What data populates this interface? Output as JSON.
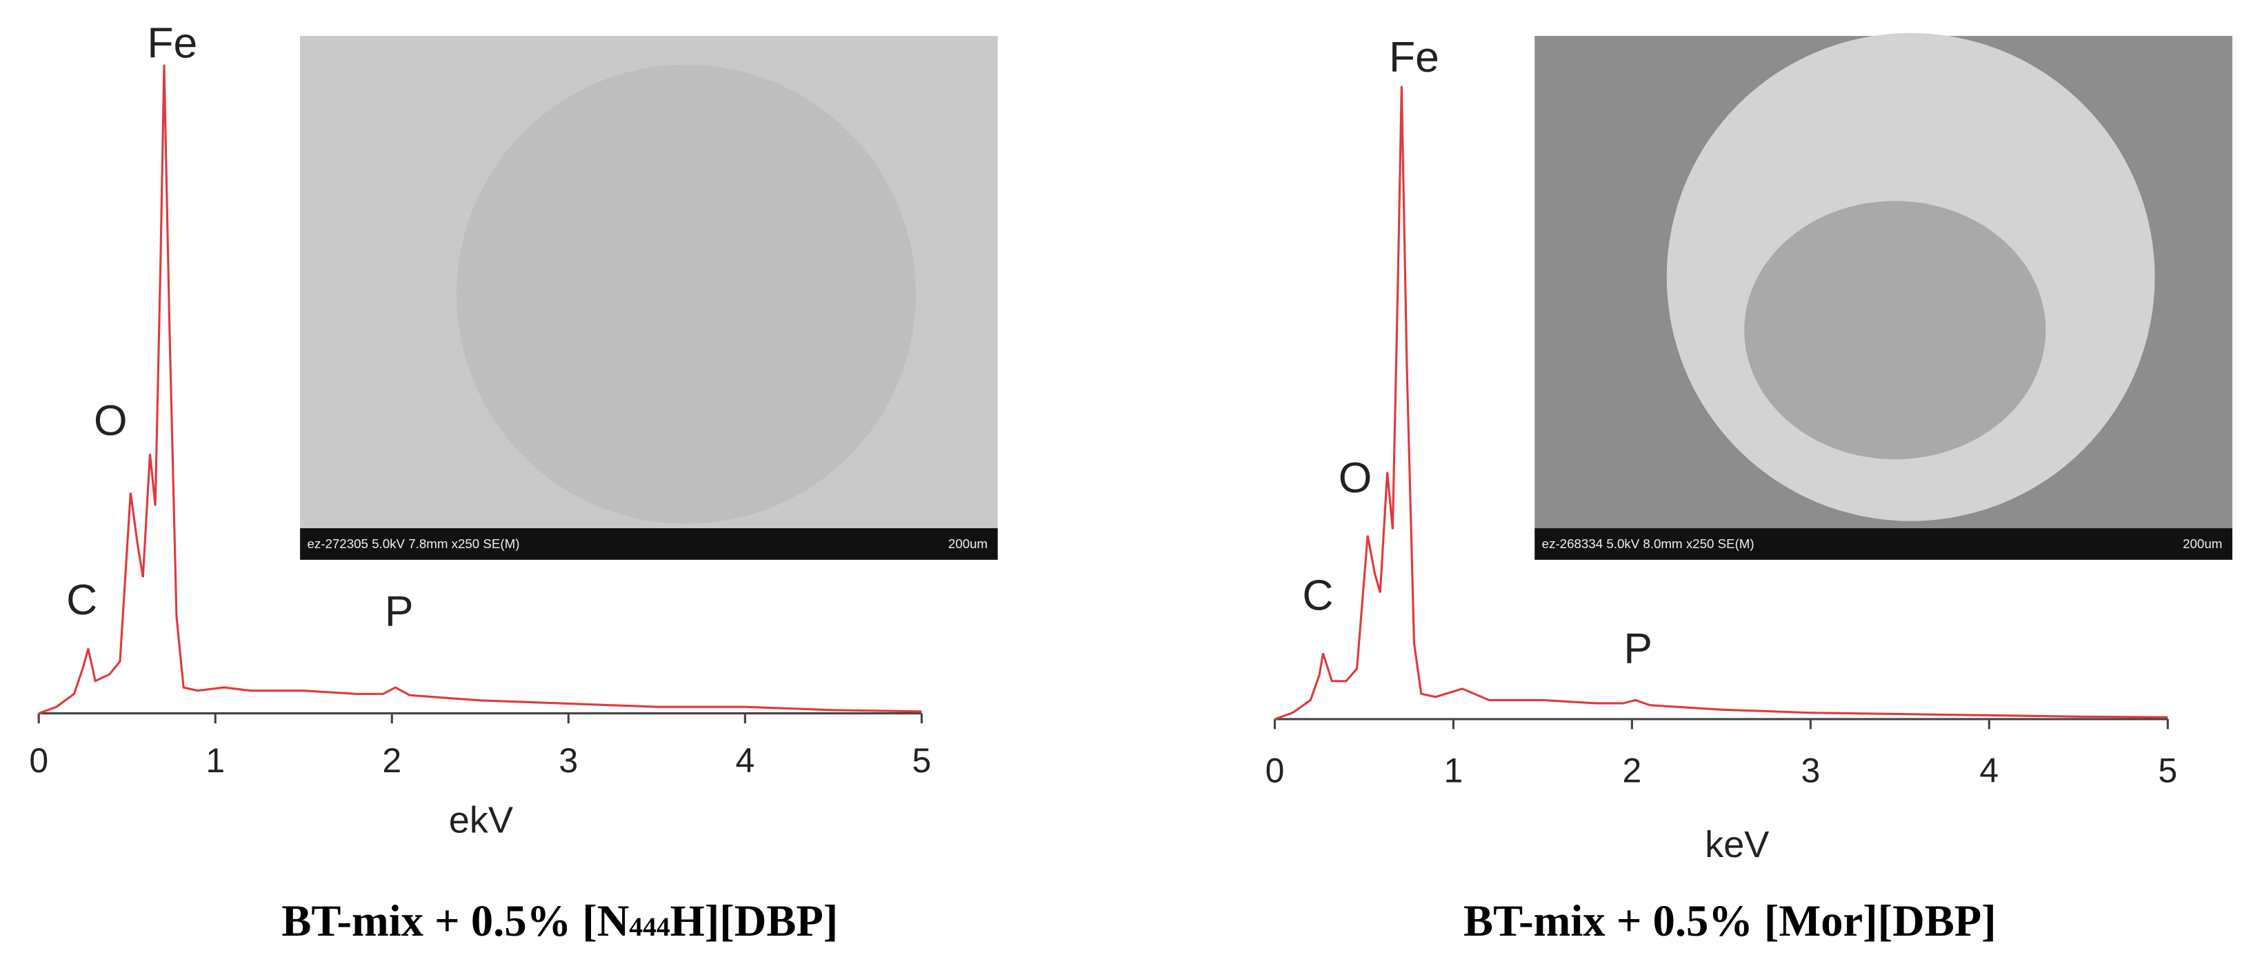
{
  "chart_data": [
    {
      "type": "line",
      "x": [
        0,
        0.1,
        0.2,
        0.25,
        0.28,
        0.32,
        0.4,
        0.46,
        0.52,
        0.56,
        0.59,
        0.63,
        0.66,
        0.69,
        0.71,
        0.74,
        0.78,
        0.82,
        0.9,
        1.05,
        1.2,
        1.5,
        1.8,
        1.95,
        2.02,
        2.1,
        2.5,
        3,
        3.5,
        4,
        4.5,
        5
      ],
      "series": [
        {
          "color": "#e0393e",
          "values": [
            0,
            1,
            3,
            7,
            10,
            5,
            6,
            8,
            34,
            26,
            21,
            40,
            32,
            70,
            100,
            60,
            15,
            4,
            3.5,
            4,
            3.5,
            3.5,
            3,
            3,
            4,
            2.8,
            2,
            1.5,
            1,
            1,
            0.5,
            0.3
          ]
        }
      ],
      "xlim": [
        0,
        5
      ],
      "xticks": [
        0,
        1,
        2,
        3,
        4,
        5
      ],
      "ylim": [
        0,
        100
      ],
      "xlabel": "ekV",
      "annotations": [
        "Fe",
        "O",
        "C",
        "P"
      ],
      "image_label": "ez-272305 5.0kV 7.8mm x250 SE(M)",
      "scale_label": "200um",
      "caption_parts": [
        "BT-mix + 0.5% [N",
        "444",
        "H][DBP]"
      ]
    },
    {
      "type": "line",
      "x": [
        0,
        0.1,
        0.2,
        0.25,
        0.27,
        0.32,
        0.4,
        0.46,
        0.52,
        0.56,
        0.59,
        0.63,
        0.66,
        0.69,
        0.71,
        0.74,
        0.78,
        0.82,
        0.9,
        1.05,
        1.2,
        1.5,
        1.8,
        1.95,
        2.02,
        2.1,
        2.5,
        3,
        3.5,
        4,
        4.5,
        5
      ],
      "series": [
        {
          "color": "#e0393e",
          "values": [
            0,
            1,
            3,
            7,
            10.4,
            6,
            6,
            8,
            29,
            23,
            20,
            39,
            30,
            70,
            100,
            55,
            12,
            4,
            3.5,
            4.8,
            3,
            3,
            2.5,
            2.5,
            3,
            2.2,
            1.5,
            1,
            0.8,
            0.6,
            0.4,
            0.3
          ]
        }
      ],
      "xlim": [
        0,
        5
      ],
      "xticks": [
        0,
        1,
        2,
        3,
        4,
        5
      ],
      "ylim": [
        0,
        100
      ],
      "xlabel": "keV",
      "annotations": [
        "Fe",
        "O",
        "C",
        "P"
      ],
      "image_label": "ez-268334 5.0kV 8.0mm x250 SE(M)",
      "scale_label": "200um",
      "caption_parts": [
        "BT-mix + 0.5% [Mor][DBP]"
      ]
    }
  ]
}
